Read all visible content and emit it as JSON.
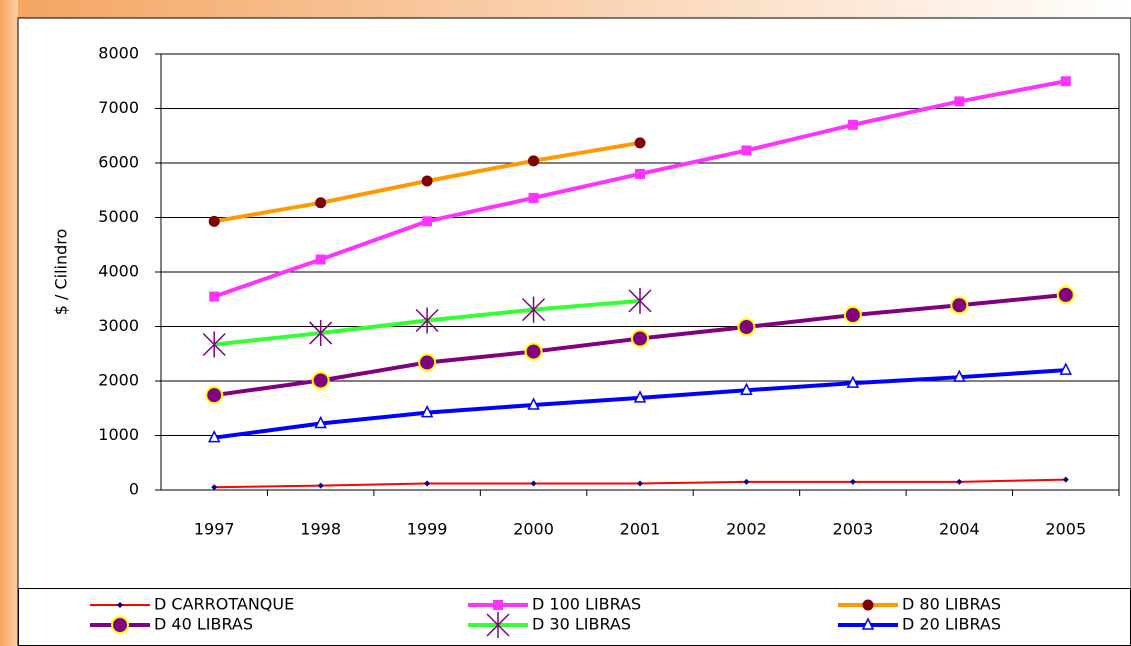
{
  "chart_data": {
    "type": "line",
    "categories": [
      "1997",
      "1998",
      "1999",
      "2000",
      "2001",
      "2002",
      "2003",
      "2004",
      "2005"
    ],
    "y_label": "$ / Cilindro",
    "ylim": [
      0,
      8000
    ],
    "yticks": [
      0,
      1000,
      2000,
      3000,
      4000,
      5000,
      6000,
      7000,
      8000
    ],
    "grid": true,
    "series": [
      {
        "name": "D CARROTANQUE",
        "color": "#ff0000",
        "marker": "diamond",
        "values": [
          50,
          80,
          120,
          120,
          120,
          150,
          150,
          150,
          190
        ]
      },
      {
        "name": "D 100 LIBRAS",
        "color": "#ff33ff",
        "marker": "square",
        "values": [
          3550,
          4230,
          4930,
          5360,
          5800,
          6230,
          6700,
          7130,
          7500
        ]
      },
      {
        "name": "D 80 LIBRAS",
        "color": "#ff9900",
        "marker": "circle-dark",
        "values": [
          4930,
          5270,
          5670,
          6040,
          6370,
          null,
          null,
          null,
          null
        ]
      },
      {
        "name": "D 40 LIBRAS",
        "color": "#800080",
        "marker": "circle-yellow",
        "values": [
          1740,
          2010,
          2340,
          2540,
          2780,
          2990,
          3210,
          3390,
          3580
        ]
      },
      {
        "name": "D 30 LIBRAS",
        "color": "#33ff33",
        "marker": "star",
        "values": [
          2670,
          2880,
          3110,
          3310,
          3470,
          null,
          null,
          null,
          null
        ]
      },
      {
        "name": "D 20 LIBRAS",
        "color": "#0000ff",
        "marker": "triangle",
        "values": [
          960,
          1220,
          1420,
          1560,
          1690,
          1830,
          1960,
          2070,
          2200
        ]
      }
    ]
  }
}
